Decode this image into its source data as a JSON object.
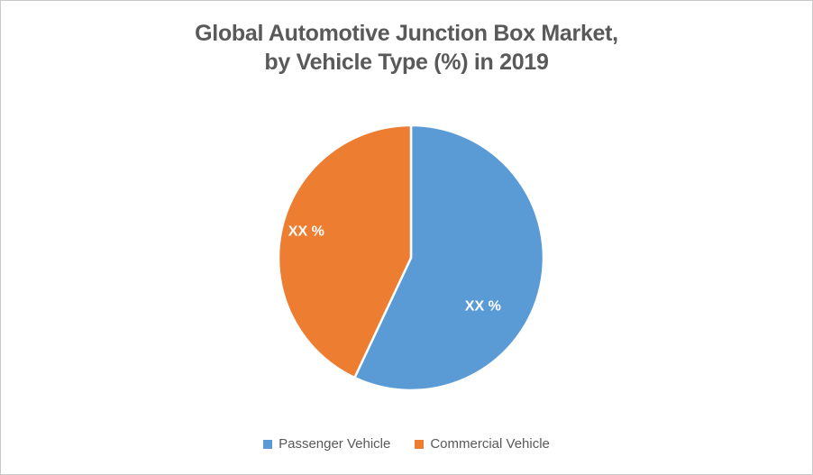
{
  "window": {
    "background": "#ffffff",
    "frame_border_color": "#c9c9c9"
  },
  "title": {
    "lines": [
      "Global Automotive Junction Box Market,",
      "by Vehicle Type (%) in 2019"
    ],
    "color": "#595959"
  },
  "chart_data": {
    "type": "pie",
    "title": "Global Automotive Junction Box Market, by Vehicle Type (%) in 2019",
    "unit": "%",
    "year": "2019",
    "legend_position": "bottom",
    "start_angle_deg": 0,
    "direction": "clockwise",
    "slice_border_color": "#ffffff",
    "data_label_color": "#ffffff",
    "series": [
      {
        "name": "Passenger Vehicle",
        "color": "#5B9BD5",
        "value_pct": 57,
        "data_label": "XX %",
        "label_angle_deg": 124,
        "label_radius_frac": 0.655
      },
      {
        "name": "Commercial Vehicle",
        "color": "#ED7D31",
        "value_pct": 43,
        "data_label": "XX %",
        "label_angle_deg": 284,
        "label_radius_frac": 0.815
      }
    ],
    "values_note": "Data labels are masked as 'XX %' in the image; the 57/43 split is estimated from the drawn slice angles."
  },
  "legend": {
    "text_color": "#595959"
  }
}
